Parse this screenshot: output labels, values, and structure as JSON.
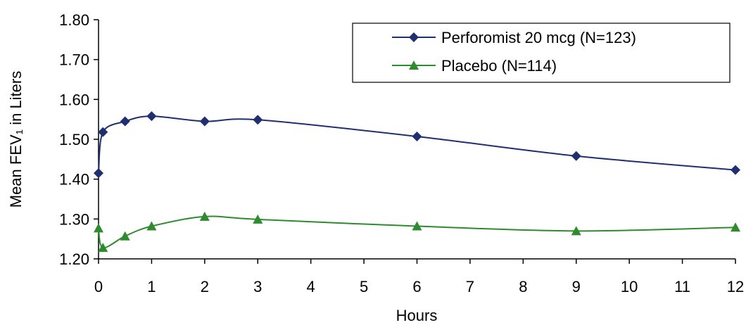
{
  "chart_data": {
    "type": "line",
    "xlabel": "Hours",
    "ylabel": "Mean FEV₁ in Liters",
    "xlim": [
      0,
      12
    ],
    "ylim": [
      1.2,
      1.8
    ],
    "x_ticks": [
      "0",
      "1",
      "2",
      "3",
      "4",
      "5",
      "6",
      "7",
      "8",
      "9",
      "10",
      "11",
      "12"
    ],
    "y_ticks": [
      "1.20",
      "1.30",
      "1.40",
      "1.50",
      "1.60",
      "1.70",
      "1.80"
    ],
    "grid": false,
    "legend_position": "top-right",
    "series": [
      {
        "name": "Perforomist 20 mcg (N=123)",
        "color": "#1F2F6F",
        "marker": "diamond",
        "x": [
          0,
          0.083,
          0.5,
          1,
          2,
          3,
          6,
          9,
          12
        ],
        "y": [
          1.415,
          1.518,
          1.545,
          1.558,
          1.545,
          1.549,
          1.507,
          1.458,
          1.423
        ]
      },
      {
        "name": "Placebo (N=114)",
        "color": "#2E8B2E",
        "marker": "triangle",
        "x": [
          0,
          0.083,
          0.5,
          1,
          2,
          3,
          6,
          9,
          12
        ],
        "y": [
          1.277,
          1.228,
          1.257,
          1.282,
          1.306,
          1.299,
          1.282,
          1.27,
          1.279
        ]
      }
    ]
  }
}
